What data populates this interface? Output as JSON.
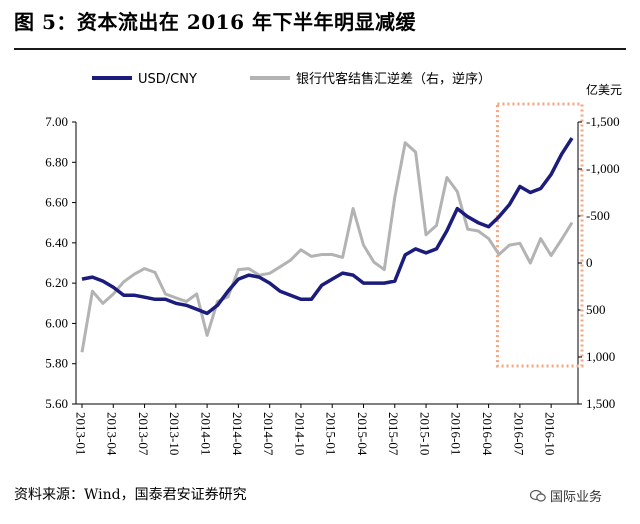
{
  "title": "图 5：资本流出在 2016 年下半年明显减缓",
  "source": "资料来源：Wind，国泰君安证券研究",
  "watermark": "国际业务",
  "chart_data": {
    "type": "line",
    "x": [
      "2013-01",
      "2013-02",
      "2013-03",
      "2013-04",
      "2013-05",
      "2013-06",
      "2013-07",
      "2013-08",
      "2013-09",
      "2013-10",
      "2013-11",
      "2013-12",
      "2014-01",
      "2014-02",
      "2014-03",
      "2014-04",
      "2014-05",
      "2014-06",
      "2014-07",
      "2014-08",
      "2014-09",
      "2014-10",
      "2014-11",
      "2014-12",
      "2015-01",
      "2015-02",
      "2015-03",
      "2015-04",
      "2015-05",
      "2015-06",
      "2015-07",
      "2015-08",
      "2015-09",
      "2015-10",
      "2015-11",
      "2015-12",
      "2016-01",
      "2016-02",
      "2016-03",
      "2016-04",
      "2016-05",
      "2016-06",
      "2016-07",
      "2016-08",
      "2016-09",
      "2016-10",
      "2016-11",
      "2016-12"
    ],
    "x_tick_labels": [
      "2013-01",
      "2013-04",
      "2013-07",
      "2013-10",
      "2014-01",
      "2014-04",
      "2014-07",
      "2014-10",
      "2015-01",
      "2015-04",
      "2015-07",
      "2015-10",
      "2016-01",
      "2016-04",
      "2016-07",
      "2016-10"
    ],
    "series": [
      {
        "name": "USD/CNY",
        "axis": "left",
        "color": "#1c1c7c",
        "values": [
          6.22,
          6.23,
          6.21,
          6.18,
          6.14,
          6.14,
          6.13,
          6.12,
          6.12,
          6.1,
          6.09,
          6.07,
          6.05,
          6.09,
          6.16,
          6.22,
          6.24,
          6.23,
          6.2,
          6.16,
          6.14,
          6.12,
          6.12,
          6.19,
          6.22,
          6.25,
          6.24,
          6.2,
          6.2,
          6.2,
          6.21,
          6.34,
          6.37,
          6.35,
          6.37,
          6.46,
          6.57,
          6.53,
          6.5,
          6.48,
          6.53,
          6.59,
          6.68,
          6.65,
          6.67,
          6.74,
          6.84,
          6.92
        ]
      },
      {
        "name": "银行代客结售汇逆差（右，逆序）",
        "axis": "right",
        "color": "#b3b3b3",
        "values": [
          950,
          300,
          430,
          330,
          200,
          120,
          60,
          100,
          330,
          370,
          410,
          330,
          770,
          410,
          360,
          70,
          60,
          130,
          110,
          40,
          -30,
          -140,
          -70,
          -90,
          -90,
          -60,
          -580,
          -190,
          -10,
          70,
          -700,
          -1280,
          -1180,
          -300,
          -400,
          -910,
          -760,
          -360,
          -340,
          -260,
          -90,
          -190,
          -210,
          0,
          -260,
          -80,
          -250,
          -430
        ]
      }
    ],
    "left_axis": {
      "min": 5.6,
      "max": 7.0,
      "ticks": [
        "7.00",
        "6.80",
        "6.60",
        "6.40",
        "6.20",
        "6.00",
        "5.80",
        "5.60"
      ]
    },
    "right_axis": {
      "min": -1500,
      "max": 1500,
      "inverted": true,
      "unit": "亿美元",
      "ticks": [
        "-1,500",
        "-1,000",
        "-500",
        "0",
        "500",
        "1,000",
        "1,500"
      ]
    },
    "highlight_box": {
      "from": "2016-06",
      "to": "2016-12",
      "style": "dotted",
      "color": "#f4a582"
    },
    "grid": false,
    "legend": "top"
  }
}
